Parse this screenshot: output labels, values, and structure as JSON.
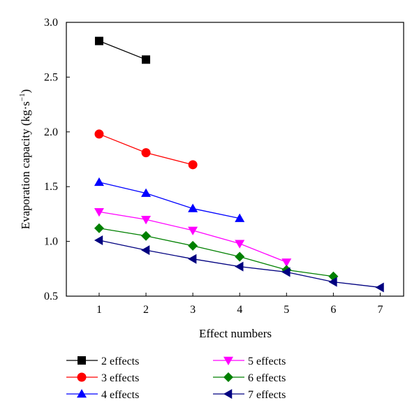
{
  "chart_data": {
    "type": "line",
    "xlabel": "Effect numbers",
    "ylabel_main": "Evaporation capacity (kg·s",
    "ylabel_exp": "−1",
    "ylabel_close": ")",
    "xlim": [
      0.3,
      7.5
    ],
    "ylim": [
      0.5,
      3.0
    ],
    "xticks": [
      1,
      2,
      3,
      4,
      5,
      6,
      7
    ],
    "yticks": [
      "0.5",
      "1.0",
      "1.5",
      "2.0",
      "2.5",
      "3.0"
    ],
    "legend_placement": "bottom",
    "series": [
      {
        "name": "2 effects",
        "color": "#000000",
        "marker": "square",
        "x": [
          1,
          2
        ],
        "y": [
          2.83,
          2.66
        ]
      },
      {
        "name": "3 effects",
        "color": "#ff0000",
        "marker": "circle",
        "x": [
          1,
          2,
          3
        ],
        "y": [
          1.98,
          1.81,
          1.7
        ]
      },
      {
        "name": "4 effects",
        "color": "#0000ff",
        "marker": "triangle-up",
        "x": [
          1,
          2,
          3,
          4
        ],
        "y": [
          1.54,
          1.44,
          1.3,
          1.21
        ]
      },
      {
        "name": "5 effects",
        "color": "#ff00ff",
        "marker": "triangle-down",
        "x": [
          1,
          2,
          3,
          4,
          5
        ],
        "y": [
          1.27,
          1.2,
          1.1,
          0.98,
          0.81
        ]
      },
      {
        "name": "6 effects",
        "color": "#008000",
        "marker": "diamond",
        "x": [
          1,
          2,
          3,
          4,
          5,
          6
        ],
        "y": [
          1.12,
          1.05,
          0.96,
          0.86,
          0.74,
          0.68
        ]
      },
      {
        "name": "7 effects",
        "color": "#000080",
        "marker": "triangle-left",
        "x": [
          1,
          2,
          3,
          4,
          5,
          6,
          7
        ],
        "y": [
          1.01,
          0.92,
          0.84,
          0.77,
          0.72,
          0.63,
          0.58
        ]
      }
    ]
  }
}
